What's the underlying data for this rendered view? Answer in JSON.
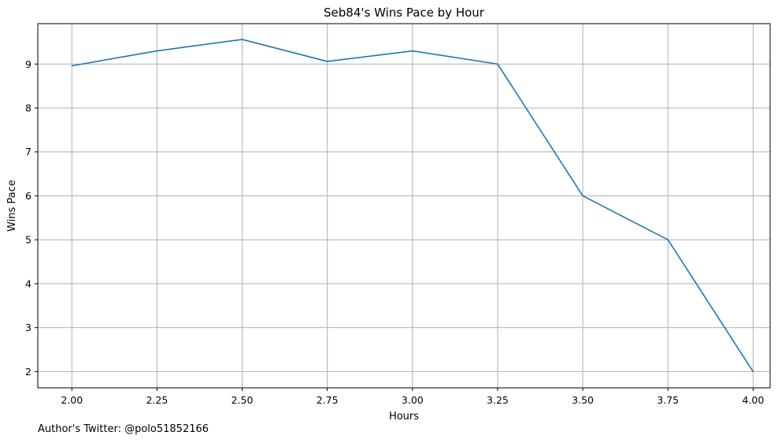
{
  "chart_data": {
    "type": "line",
    "title": "Seb84's Wins Pace by Hour",
    "xlabel": "Hours",
    "ylabel": "Wins Pace",
    "xlim": [
      1.9,
      4.05
    ],
    "ylim": [
      1.63,
      9.92
    ],
    "xticks": [
      "2.00",
      "2.25",
      "2.50",
      "2.75",
      "3.00",
      "3.25",
      "3.50",
      "3.75",
      "4.00"
    ],
    "yticks": [
      "2",
      "3",
      "4",
      "5",
      "6",
      "7",
      "8",
      "9"
    ],
    "grid": true,
    "series": [
      {
        "color": "#1f77b4",
        "x": [
          2.0,
          2.25,
          2.5,
          2.75,
          3.0,
          3.25,
          3.5,
          3.75,
          4.0
        ],
        "y": [
          8.96,
          9.3,
          9.56,
          9.06,
          9.3,
          9.0,
          6.0,
          5.0,
          2.0
        ]
      }
    ]
  },
  "footnote": "Author's Twitter: @polo51852166"
}
